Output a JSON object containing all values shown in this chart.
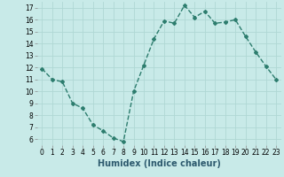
{
  "x": [
    0,
    1,
    2,
    3,
    4,
    5,
    6,
    7,
    8,
    9,
    10,
    11,
    12,
    13,
    14,
    15,
    16,
    17,
    18,
    19,
    20,
    21,
    22,
    23
  ],
  "y": [
    11.9,
    11.0,
    10.8,
    9.0,
    8.6,
    7.2,
    6.7,
    6.1,
    5.8,
    10.0,
    12.2,
    14.4,
    15.9,
    15.7,
    17.2,
    16.2,
    16.7,
    15.7,
    15.8,
    16.0,
    14.6,
    13.3,
    12.1,
    11.0
  ],
  "line_color": "#2d7d6e",
  "marker": "D",
  "marker_size": 2.0,
  "bg_color": "#c8eae8",
  "grid_color": "#afd8d4",
  "xlabel": "Humidex (Indice chaleur)",
  "xlabel_fontsize": 7,
  "ylim": [
    5.5,
    17.5
  ],
  "xlim": [
    -0.5,
    23.5
  ],
  "yticks": [
    6,
    7,
    8,
    9,
    10,
    11,
    12,
    13,
    14,
    15,
    16,
    17
  ],
  "xticks": [
    0,
    1,
    2,
    3,
    4,
    5,
    6,
    7,
    8,
    9,
    10,
    11,
    12,
    13,
    14,
    15,
    16,
    17,
    18,
    19,
    20,
    21,
    22,
    23
  ],
  "tick_fontsize": 5.5,
  "linewidth": 1.0,
  "line_style": "--"
}
